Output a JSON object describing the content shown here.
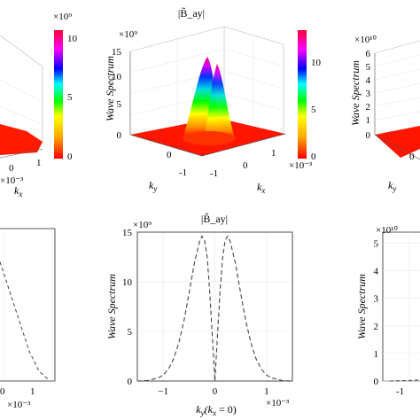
{
  "chart_data": [
    {
      "type": "surface",
      "panel": "top-left (partially visible)",
      "title": "",
      "xlabel": "k_x",
      "xticks": [
        "0",
        "1"
      ],
      "x_exponent": "×10⁻³",
      "colorbar": {
        "ticks": [
          "10",
          "5",
          "0"
        ],
        "exponent": "×10⁹",
        "colormap": "hsv-rainbow"
      },
      "surface_color_at_base": "#ff0000"
    },
    {
      "type": "surface",
      "panel": "top-middle",
      "title": "|B̃_ay|",
      "zlabel": "Wave Spectrum",
      "z_exponent": "×10⁹",
      "zticks": [
        "0",
        "5",
        "10",
        "15"
      ],
      "zlim": [
        0,
        15
      ],
      "xlabel": "k_x",
      "ylabel": "k_y",
      "xticks": [
        "-1",
        "0",
        "1"
      ],
      "yticks": [
        "0",
        "-1"
      ],
      "x_exponent": "×10⁻³",
      "colorbar": {
        "ticks": [
          "10",
          "5",
          "0"
        ],
        "exponent": "",
        "colormap": "hsv-rainbow"
      },
      "peaks": [
        {
          "label": "left peak",
          "ky": -0.25,
          "height": 14.5
        },
        {
          "label": "right peak",
          "ky": 0.25,
          "height": 13.0
        }
      ],
      "floor_color": "#ff0000"
    },
    {
      "type": "surface",
      "panel": "top-right (partially visible)",
      "title": "",
      "zlabel": "Wave Spectrum",
      "z_exponent": "×10¹⁰",
      "zticks": [
        "0",
        "1",
        "2",
        "3",
        "4",
        "5",
        "6"
      ],
      "ylabel": "k_y",
      "yticks": [
        "0"
      ]
    },
    {
      "type": "line",
      "panel": "bottom-left (partially visible)",
      "title": "",
      "xticks": [
        "0",
        "1"
      ],
      "x_exponent": "×10⁻³",
      "series": [
        {
          "x": [
            0,
            0.2,
            0.4,
            0.6,
            0.8,
            1.0
          ],
          "y": [
            12,
            9,
            6,
            3,
            1,
            0.1
          ]
        }
      ]
    },
    {
      "type": "line",
      "panel": "bottom-middle",
      "title": "|B̃_ay|",
      "xlabel": "k_y(k_x = 0)",
      "ylabel": "Wave Spectrum",
      "y_exponent": "×10⁹",
      "x_exponent": "×10⁻³",
      "xlim": [
        -1.5,
        1.5
      ],
      "ylim": [
        0,
        15
      ],
      "xticks": [
        "-1",
        "0",
        "1"
      ],
      "yticks": [
        "0",
        "5",
        "10",
        "15"
      ],
      "grid": true,
      "line_style": "dashed",
      "series": [
        {
          "x": [
            -1.5,
            -1.3,
            -1.1,
            -1.0,
            -0.9,
            -0.8,
            -0.7,
            -0.6,
            -0.5,
            -0.4,
            -0.3,
            -0.25,
            -0.2,
            -0.15,
            -0.1,
            -0.05,
            0,
            0.05,
            0.1,
            0.15,
            0.2,
            0.25,
            0.3,
            0.4,
            0.5,
            0.6,
            0.7,
            0.8,
            0.9,
            1.0,
            1.1,
            1.3,
            1.5
          ],
          "y": [
            0.0,
            0.05,
            0.3,
            0.6,
            1.2,
            2.2,
            3.8,
            6.0,
            8.8,
            11.8,
            14.0,
            14.6,
            14.2,
            12.5,
            9.0,
            4.5,
            0.0,
            4.5,
            9.0,
            12.5,
            14.2,
            14.6,
            14.0,
            11.8,
            8.8,
            6.0,
            3.8,
            2.2,
            1.2,
            0.6,
            0.3,
            0.05,
            0.0
          ]
        }
      ]
    },
    {
      "type": "line",
      "panel": "bottom-right (partially visible)",
      "title": "",
      "ylabel": "Wave Spectrum",
      "y_exponent": "×10¹⁰",
      "yticks": [
        "0",
        "1",
        "2",
        "3",
        "4",
        "5"
      ],
      "xticks": [
        "-1"
      ],
      "grid": true
    }
  ]
}
